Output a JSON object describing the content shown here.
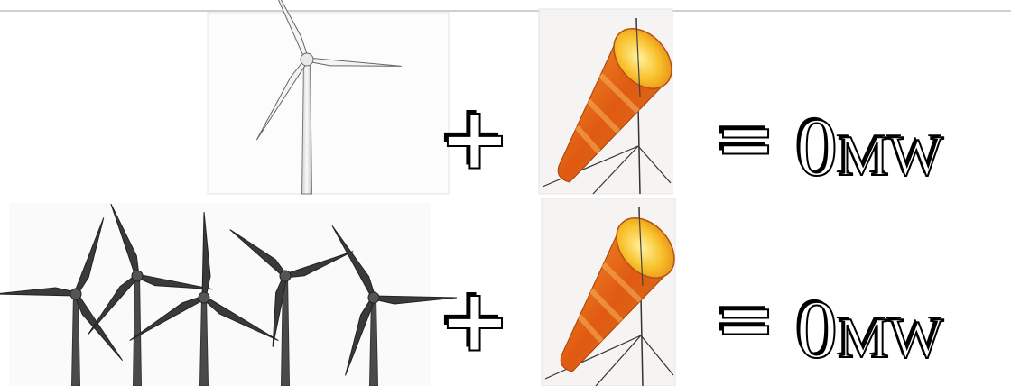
{
  "rows": [
    {
      "operator": "+",
      "equals": "=",
      "result": "0",
      "unit": "MW"
    },
    {
      "operator": "+",
      "equals": "=",
      "result": "0",
      "unit": "MW"
    }
  ]
}
